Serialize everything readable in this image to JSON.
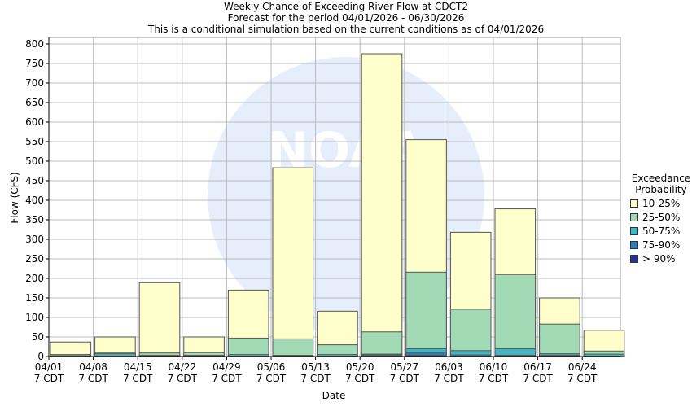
{
  "chart_data": {
    "type": "bar",
    "stacked": true,
    "title": "Weekly Chance of Exceeding River Flow at CDCT2",
    "subtitle": "Forecast for the period 04/01/2026 - 06/30/2026",
    "subtitle2": "This is a conditional simulation based on the current conditions as of 04/01/2026",
    "xlabel": "Date",
    "ylabel": "Flow (CFS)",
    "ylim": [
      0,
      820
    ],
    "yticks": [
      0,
      50,
      100,
      150,
      200,
      250,
      300,
      350,
      400,
      450,
      500,
      550,
      600,
      650,
      700,
      750,
      800
    ],
    "grid": true,
    "categories": [
      "04/01",
      "04/08",
      "04/15",
      "04/22",
      "04/29",
      "05/06",
      "05/13",
      "05/20",
      "05/27",
      "06/03",
      "06/10",
      "06/17",
      "06/24"
    ],
    "tick_sublabel": "7 CDT",
    "legend": {
      "title1": "Exceedance",
      "title2": "Probability",
      "placement": "right"
    },
    "series": [
      {
        "name": "10-25%",
        "color": "#ffffcc",
        "values": [
          37,
          50,
          189,
          50,
          170,
          483,
          116,
          775,
          555,
          318,
          378,
          150,
          67
        ]
      },
      {
        "name": "25-50%",
        "color": "#a1dab4",
        "values": [
          5,
          10,
          9,
          10,
          47,
          45,
          30,
          63,
          216,
          121,
          210,
          83,
          14
        ]
      },
      {
        "name": "50-75%",
        "color": "#41b6c4",
        "values": [
          2,
          7,
          3,
          3,
          5,
          3,
          5,
          6,
          20,
          15,
          20,
          7,
          6
        ]
      },
      {
        "name": "75-90%",
        "color": "#2c7fb8",
        "values": [
          1,
          1,
          1,
          1,
          1,
          1,
          1,
          4,
          9,
          4,
          3,
          3,
          1
        ]
      },
      {
        "name": "> 90%",
        "color": "#253494",
        "values": [
          0,
          0,
          0,
          0,
          0,
          0,
          0,
          1,
          3,
          1,
          1,
          1,
          0
        ]
      }
    ]
  },
  "watermark": "NOAA"
}
